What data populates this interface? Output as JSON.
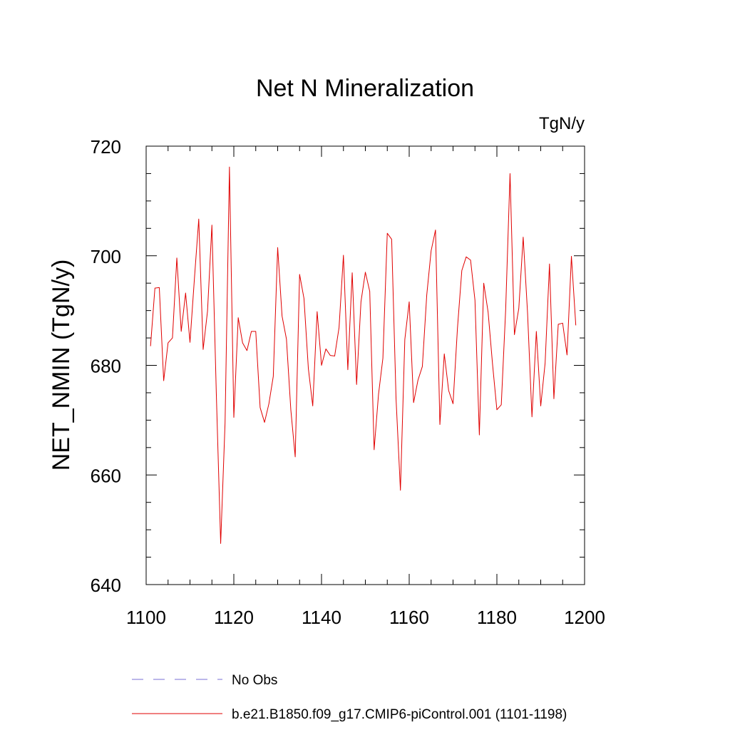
{
  "chart_data": {
    "type": "line",
    "title": "Net N Mineralization",
    "units_label": "TgN/y",
    "xlabel": "",
    "ylabel": "NET_NMIN  (TgN/y)",
    "xlim": [
      1100,
      1200
    ],
    "ylim": [
      640,
      720
    ],
    "x_ticks": [
      1100,
      1120,
      1140,
      1160,
      1180,
      1200
    ],
    "y_ticks": [
      640,
      660,
      680,
      700,
      720
    ],
    "x_minor_step": 5,
    "y_minor_step": 5,
    "grid": false,
    "legend_position": "bottom-left",
    "series": [
      {
        "name": "No Obs",
        "color": "#7a6fd6",
        "dash": "dashed",
        "x": [],
        "values": []
      },
      {
        "name": "b.e21.B1850.f09_g17.CMIP6-piControl.001 (1101-1198)",
        "color": "#e00000",
        "dash": "solid",
        "x": [
          1101,
          1102,
          1103,
          1104,
          1105,
          1106,
          1107,
          1108,
          1109,
          1110,
          1111,
          1112,
          1113,
          1114,
          1115,
          1116,
          1117,
          1118,
          1119,
          1120,
          1121,
          1122,
          1123,
          1124,
          1125,
          1126,
          1127,
          1128,
          1129,
          1130,
          1131,
          1132,
          1133,
          1134,
          1135,
          1136,
          1137,
          1138,
          1139,
          1140,
          1141,
          1142,
          1143,
          1144,
          1145,
          1146,
          1147,
          1148,
          1149,
          1150,
          1151,
          1152,
          1153,
          1154,
          1155,
          1156,
          1157,
          1158,
          1159,
          1160,
          1161,
          1162,
          1163,
          1164,
          1165,
          1166,
          1167,
          1168,
          1169,
          1170,
          1171,
          1172,
          1173,
          1174,
          1175,
          1176,
          1177,
          1178,
          1179,
          1180,
          1181,
          1182,
          1183,
          1184,
          1185,
          1186,
          1187,
          1188,
          1189,
          1190,
          1191,
          1192,
          1193,
          1194,
          1195,
          1196,
          1197,
          1198
        ],
        "values": [
          683.5,
          694.1,
          694.2,
          677.2,
          684.1,
          685.0,
          699.6,
          686.2,
          693.2,
          684.2,
          695.7,
          706.7,
          682.9,
          689.9,
          705.6,
          675.0,
          647.5,
          669.5,
          716.2,
          670.5,
          688.7,
          684.1,
          682.7,
          686.2,
          686.2,
          672.3,
          669.6,
          673.0,
          678.0,
          701.5,
          689.0,
          684.8,
          671.9,
          663.3,
          696.6,
          692.2,
          679.4,
          672.6,
          689.8,
          680.0,
          683.0,
          681.8,
          681.7,
          686.9,
          700.1,
          679.2,
          696.9,
          676.5,
          691.6,
          697.0,
          693.5,
          664.6,
          674.7,
          681.3,
          704.1,
          703.0,
          673.9,
          657.2,
          684.7,
          691.6,
          673.2,
          677.3,
          679.8,
          692.8,
          700.9,
          704.7,
          669.2,
          682.1,
          675.4,
          673.0,
          686.7,
          697.3,
          699.8,
          699.2,
          691.9,
          667.3,
          695.0,
          689.7,
          680.3,
          671.9,
          672.8,
          690.1,
          715.0,
          685.6,
          690.4,
          703.4,
          689.5,
          670.6,
          686.2,
          672.6,
          680.4,
          698.5,
          673.9,
          687.5,
          687.7,
          681.9,
          699.9,
          687.3
        ]
      }
    ]
  }
}
